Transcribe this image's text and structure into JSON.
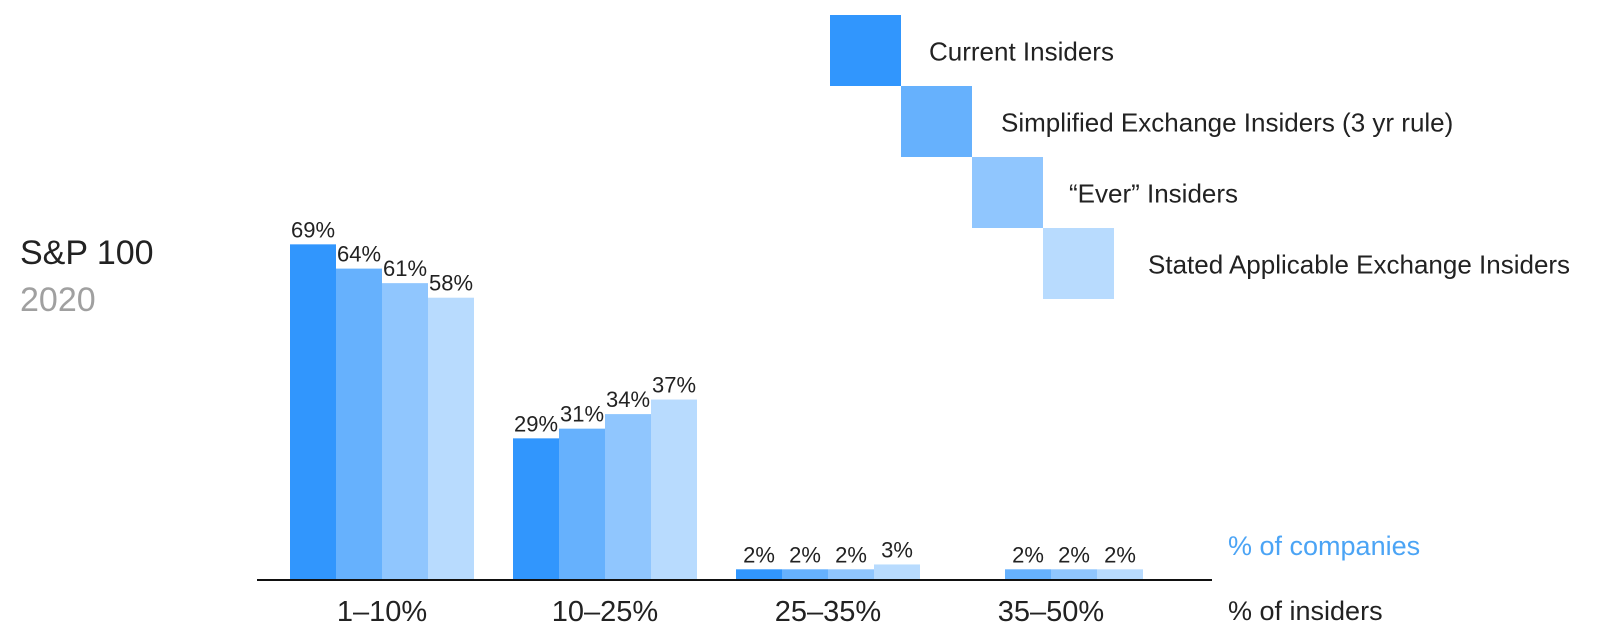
{
  "chart_data": {
    "type": "bar",
    "title": "S&P 100",
    "subtitle": "2020",
    "xlabel": "% of insiders",
    "ylabel": "% of companies",
    "categories": [
      "1–10%",
      "10–25%",
      "25–35%",
      "35–50%"
    ],
    "series": [
      {
        "name": "Current Insiders",
        "color": "#3196fd",
        "values": [
          69,
          29,
          2,
          null
        ],
        "labels": [
          "69%",
          "29%",
          "2%",
          ""
        ]
      },
      {
        "name": "Simplified Exchange Insiders (3 yr rule)",
        "color": "#66b1fd",
        "values": [
          64,
          31,
          2,
          2
        ],
        "labels": [
          "64%",
          "31%",
          "2%",
          "2%"
        ]
      },
      {
        "name": "“Ever” Insiders",
        "color": "#90c6fe",
        "values": [
          61,
          34,
          2,
          2
        ],
        "labels": [
          "61%",
          "34%",
          "2%",
          "2%"
        ]
      },
      {
        "name": "Stated Applicable Exchange Insiders",
        "color": "#b8dbfe",
        "values": [
          58,
          37,
          3,
          2
        ],
        "labels": [
          "58%",
          "37%",
          "3%",
          "2%"
        ]
      }
    ],
    "ylim": [
      0,
      70
    ],
    "grid": false,
    "legend": "top-right",
    "ylabel_color": "#4ba4f5"
  }
}
